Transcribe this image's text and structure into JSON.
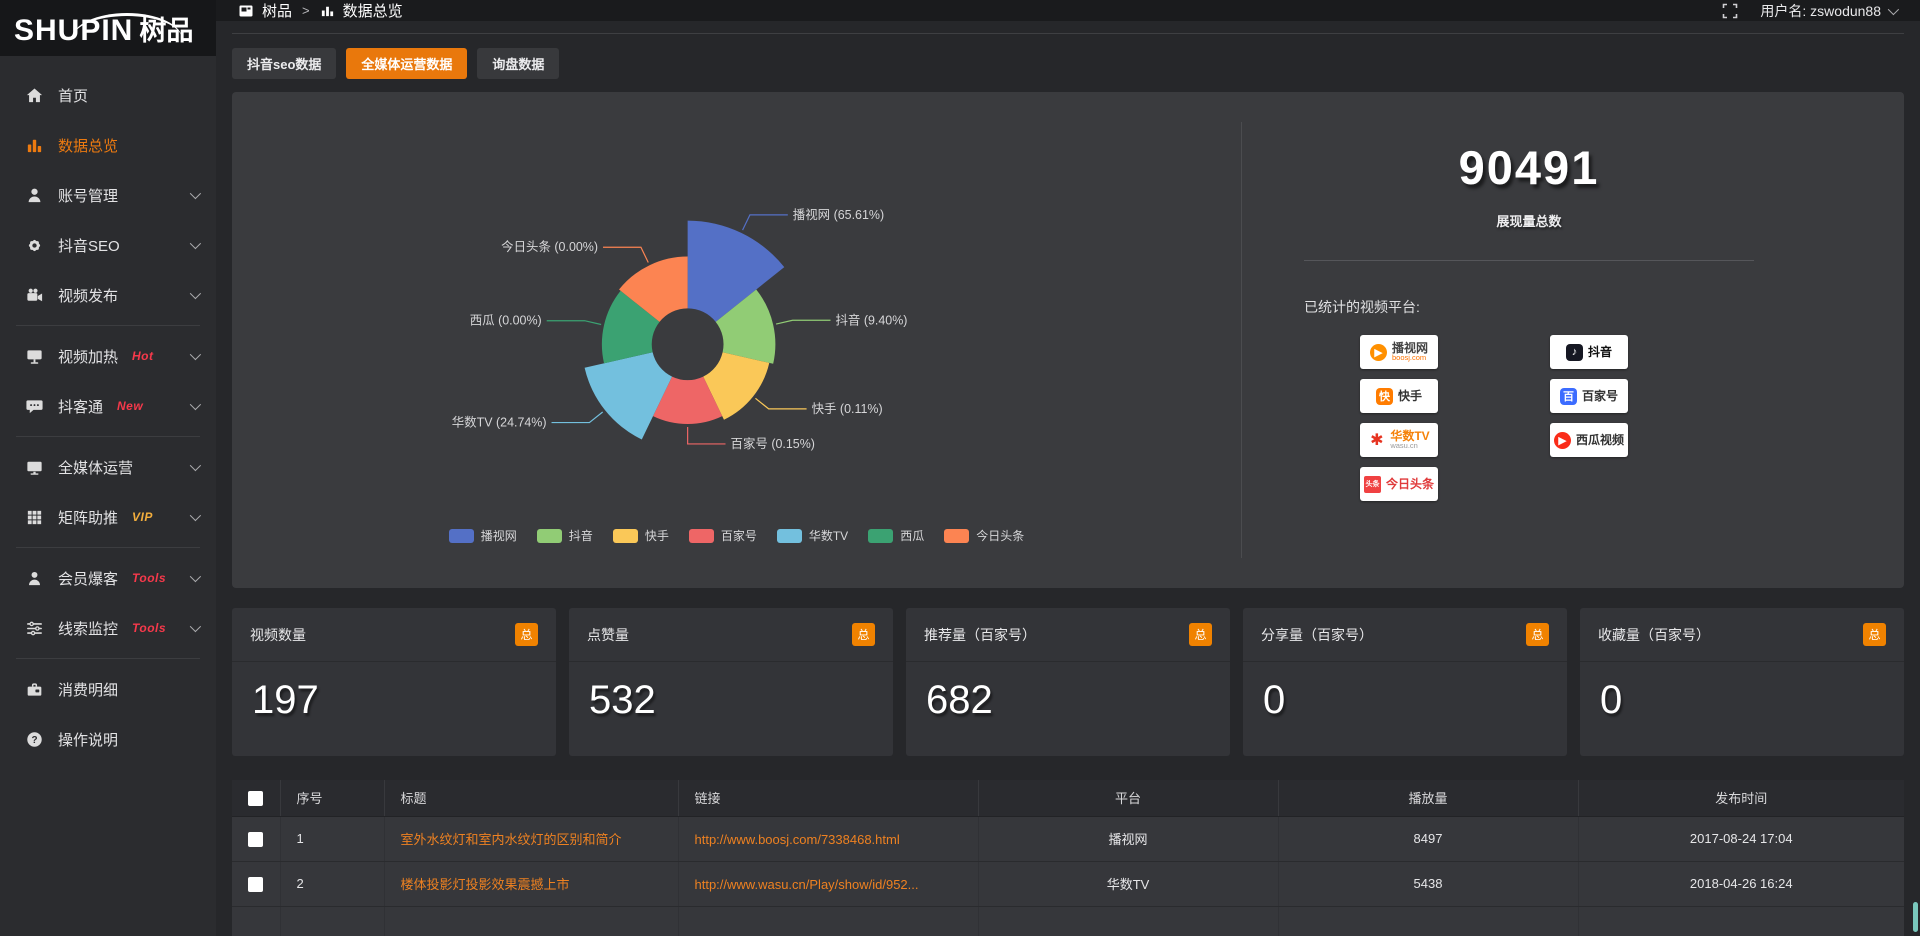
{
  "colors": {
    "accent": "#e9780c",
    "link_orange": "#ee8121",
    "badge_red": "#f6394b",
    "badge_vip": "#f3ae3d"
  },
  "sidebar": {
    "logo_en": "SHUPIN",
    "logo_cn": "树品",
    "items": [
      {
        "label": "首页"
      },
      {
        "label": "数据总览",
        "active": true
      },
      {
        "label": "账号管理"
      },
      {
        "label": "抖音SEO"
      },
      {
        "label": "视频发布"
      },
      {
        "label": "视频加热",
        "badge": "Hot"
      },
      {
        "label": "抖客通",
        "badge": "New"
      },
      {
        "label": "全媒体运营"
      },
      {
        "label": "矩阵助推",
        "badge": "VIP"
      },
      {
        "label": "会员爆客",
        "badge": "Tools"
      },
      {
        "label": "线索监控",
        "badge": "Tools"
      },
      {
        "label": "消费明细"
      },
      {
        "label": "操作说明"
      }
    ]
  },
  "topbar": {
    "breadcrumb_root": "树品",
    "breadcrumb_sep": ">",
    "breadcrumb_current": "数据总览",
    "username": "用户名: zswodun88"
  },
  "tabs": [
    {
      "label": "抖音seo数据"
    },
    {
      "label": "全媒体运营数据",
      "active": true
    },
    {
      "label": "询盘数据"
    }
  ],
  "chart_data": {
    "type": "pie",
    "variant": "nightingale-rose",
    "inner_radius": 36,
    "label_format": "{name} ({percent}%)",
    "legend_position": "bottom",
    "slices": [
      {
        "name": "播视网",
        "percent": "65.61",
        "color": "#5470c6",
        "radius": 124
      },
      {
        "name": "抖音",
        "percent": "9.40",
        "color": "#91cc75",
        "radius": 88
      },
      {
        "name": "快手",
        "percent": "0.11",
        "color": "#fac858",
        "radius": 84
      },
      {
        "name": "百家号",
        "percent": "0.15",
        "color": "#ee6666",
        "radius": 80
      },
      {
        "name": "华数TV",
        "percent": "24.74",
        "color": "#73c0de",
        "radius": 106
      },
      {
        "name": "西瓜",
        "percent": "0.00",
        "color": "#3ba272",
        "radius": 86
      },
      {
        "name": "今日头条",
        "percent": "0.00",
        "color": "#fc8452",
        "radius": 88
      }
    ]
  },
  "summary": {
    "total": "90491",
    "total_label": "展现量总数",
    "platforms_label": "已统计的视频平台:",
    "platforms_left": [
      {
        "name": "播视网",
        "sub": "boosj.com",
        "glyph": "▶",
        "shape": "circle",
        "glyph_bg": "#ff9000",
        "glyph_color": "#ffffff",
        "name_color": "#444444",
        "sub_color": "#ff7300"
      },
      {
        "name": "快手",
        "glyph": "快",
        "shape": "round",
        "glyph_bg": "#ff7c00",
        "glyph_color": "#ffffff",
        "name_color": "#333333"
      },
      {
        "name": "华数TV",
        "sub": "wasu.cn",
        "glyph": "✱",
        "shape": "none",
        "glyph_bg": "transparent",
        "glyph_color": "#e63320",
        "name_color": "#f5820a",
        "sub_color": "#999999"
      },
      {
        "name": "今日头条",
        "glyph": "头条",
        "shape": "square",
        "glyph_bg": "#f04142",
        "glyph_color": "#ffffff",
        "name_color": "#e03a3b"
      }
    ],
    "platforms_right": [
      {
        "name": "抖音",
        "glyph": "♪",
        "shape": "round",
        "glyph_bg": "#161823",
        "glyph_color": "#ffffff",
        "name_color": "#111111"
      },
      {
        "name": "百家号",
        "glyph": "百",
        "shape": "round",
        "glyph_bg": "#3c6cff",
        "glyph_color": "#ffffff",
        "name_color": "#333333"
      },
      {
        "name": "西瓜视频",
        "glyph": "▶",
        "shape": "circle",
        "glyph_bg": "#fa2c19",
        "glyph_color": "#ffffff",
        "name_color": "#333333"
      }
    ]
  },
  "cards": [
    {
      "title": "视频数量",
      "badge": "总",
      "value": "197"
    },
    {
      "title": "点赞量",
      "badge": "总",
      "value": "532"
    },
    {
      "title": "推荐量（百家号）",
      "badge": "总",
      "value": "682"
    },
    {
      "title": "分享量（百家号）",
      "badge": "总",
      "value": "0"
    },
    {
      "title": "收藏量（百家号）",
      "badge": "总",
      "value": "0"
    }
  ],
  "table": {
    "headers": {
      "index": "序号",
      "title": "标题",
      "link": "链接",
      "platform": "平台",
      "plays": "播放量",
      "time": "发布时间"
    },
    "rows": [
      {
        "index": "1",
        "title": "室外水纹灯和室内水纹灯的区别和简介",
        "link": "http://www.boosj.com/7338468.html",
        "platform": "播视网",
        "plays": "8497",
        "time": "2017-08-24 17:04"
      },
      {
        "index": "2",
        "title": "楼体投影灯投影效果震撼上市",
        "link": "http://www.wasu.cn/Play/show/id/952...",
        "platform": "华数TV",
        "plays": "5438",
        "time": "2018-04-26 16:24"
      }
    ]
  }
}
